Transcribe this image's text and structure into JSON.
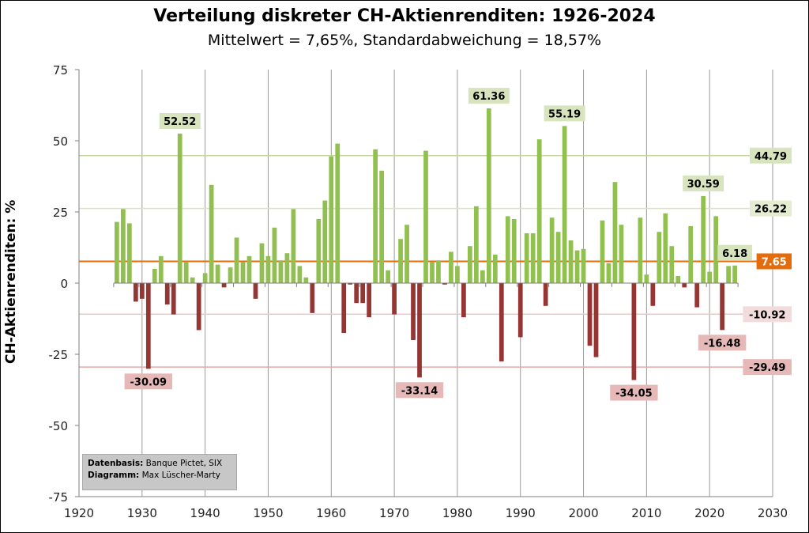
{
  "title": "Verteilung diskreter CH-Aktienrenditen: 1926-2024",
  "subtitle": "Mittelwert = 7,65%, Standardabweichung = 18,57%",
  "source_box": {
    "basis_label": "Datenbasis:",
    "basis_value": "Banque Pictet, SIX",
    "diagram_label": "Diagramm:",
    "diagram_value": "Max Lüscher-Marty"
  },
  "chart_data": {
    "type": "bar",
    "ylabel": "CH-Aktienrenditen: %",
    "xlabel": "",
    "xlim": [
      1920,
      2030
    ],
    "ylim": [
      -75,
      75
    ],
    "x_ticks": [
      1920,
      1930,
      1940,
      1950,
      1960,
      1970,
      1980,
      1990,
      2000,
      2010,
      2020,
      2030
    ],
    "y_ticks": [
      -75,
      -50,
      -25,
      0,
      25,
      50,
      75
    ],
    "grid": "vertical",
    "colors": {
      "positive": "#92c050",
      "negative": "#943634",
      "mean": "#e46c0a",
      "upper_band": "#d7e4bd",
      "lower_band": "#e6b9b8"
    },
    "reference_lines": [
      {
        "value": 44.79,
        "label": "44.79",
        "color": "#c3d69b",
        "label_bg": "#d7e4bd"
      },
      {
        "value": 26.22,
        "label": "26.22",
        "color": "#d7e4bd",
        "label_bg": "#e4edd1"
      },
      {
        "value": 7.65,
        "label": "7.65",
        "color": "#e46c0a",
        "label_bg": "#e46c0a",
        "label_color": "#ffffff"
      },
      {
        "value": -10.92,
        "label": "-10.92",
        "color": "#f2c5c3",
        "label_bg": "#f2dcdb"
      },
      {
        "value": -29.49,
        "label": "-29.49",
        "color": "#e6a6a4",
        "label_bg": "#e6b9b8"
      }
    ],
    "annotations": [
      {
        "year": 1936,
        "value": 52.52,
        "label": "52.52",
        "position": "above"
      },
      {
        "year": 1931,
        "value": -30.09,
        "label": "-30.09",
        "position": "below"
      },
      {
        "year": 1974,
        "value": -33.14,
        "label": "-33.14",
        "position": "below"
      },
      {
        "year": 1985,
        "value": 61.36,
        "label": "61.36",
        "position": "above"
      },
      {
        "year": 1997,
        "value": 55.19,
        "label": "55.19",
        "position": "above"
      },
      {
        "year": 2008,
        "value": -34.05,
        "label": "-34.05",
        "position": "below"
      },
      {
        "year": 2019,
        "value": 30.59,
        "label": "30.59",
        "position": "above"
      },
      {
        "year": 2022,
        "value": -16.48,
        "label": "-16.48",
        "position": "below"
      },
      {
        "year": 2024,
        "value": 6.18,
        "label": "6.18",
        "position": "above"
      }
    ],
    "series": [
      {
        "x": [
          1926,
          1927,
          1928,
          1929,
          1930,
          1931,
          1932,
          1933,
          1934,
          1935,
          1936,
          1937,
          1938,
          1939,
          1940,
          1941,
          1942,
          1943,
          1944,
          1945,
          1946,
          1947,
          1948,
          1949,
          1950,
          1951,
          1952,
          1953,
          1954,
          1955,
          1956,
          1957,
          1958,
          1959,
          1960,
          1961,
          1962,
          1963,
          1964,
          1965,
          1966,
          1967,
          1968,
          1969,
          1970,
          1971,
          1972,
          1973,
          1974,
          1975,
          1976,
          1977,
          1978,
          1979,
          1980,
          1981,
          1982,
          1983,
          1984,
          1985,
          1986,
          1987,
          1988,
          1989,
          1990,
          1991,
          1992,
          1993,
          1994,
          1995,
          1996,
          1997,
          1998,
          1999,
          2000,
          2001,
          2002,
          2003,
          2004,
          2005,
          2006,
          2007,
          2008,
          2009,
          2010,
          2011,
          2012,
          2013,
          2014,
          2015,
          2016,
          2017,
          2018,
          2019,
          2020,
          2021,
          2022,
          2023,
          2024
        ],
        "values": [
          21.5,
          26,
          21,
          -6.5,
          -5.5,
          -30.09,
          5,
          9.5,
          -7.5,
          -11,
          52.52,
          7.5,
          2,
          -16.5,
          3.5,
          34.5,
          6.5,
          -1.5,
          5.5,
          16,
          7.5,
          9.5,
          -5.5,
          14,
          9.5,
          19.5,
          8,
          10.5,
          26,
          6,
          2,
          -10.5,
          22.5,
          29,
          44.5,
          49,
          -17.5,
          -0.5,
          -7,
          -7,
          -12,
          47,
          39.5,
          4.5,
          -11,
          15.5,
          20.5,
          -20,
          -33.14,
          46.5,
          7.5,
          8,
          -0.5,
          11,
          6,
          -12,
          13,
          27,
          4.5,
          61.36,
          10,
          -27.5,
          23.5,
          22.5,
          -19,
          17.5,
          17.5,
          50.5,
          -8,
          23,
          18,
          55.19,
          15,
          11.5,
          12,
          -22,
          -26,
          22,
          7,
          35.5,
          20.5,
          0,
          -34.05,
          23,
          3,
          -8,
          18,
          24.5,
          13,
          2.5,
          -1.5,
          20,
          -8.5,
          30.59,
          4,
          23.5,
          -16.48,
          6,
          6.18
        ]
      }
    ]
  }
}
